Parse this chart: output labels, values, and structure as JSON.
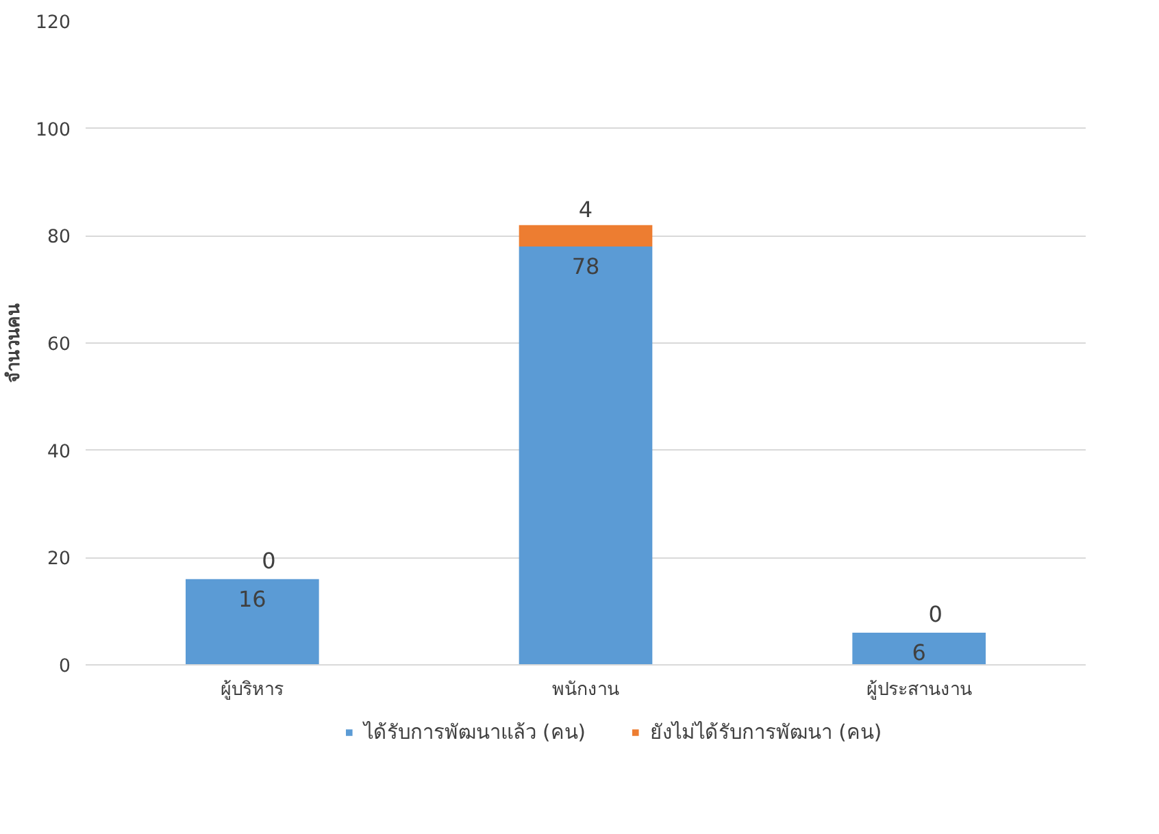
{
  "chart_data": {
    "type": "bar",
    "stacked": true,
    "ylabel": "จำนวนคน",
    "categories": [
      "ผู้บริหาร",
      "พนักงาน",
      "ผู้ประสานงาน"
    ],
    "series": [
      {
        "name": "ได้รับการพัฒนาแล้ว (คน)",
        "color": "#5b9bd5",
        "values": [
          16,
          78,
          6
        ]
      },
      {
        "name": "ยังไม่ได้รับการพัฒนา (คน)",
        "color": "#ed7d31",
        "values": [
          0,
          4,
          0
        ]
      }
    ],
    "ylim": [
      0,
      120
    ],
    "yticks": [
      0,
      20,
      40,
      60,
      80,
      100,
      120
    ],
    "grid": "y",
    "legend": "bottom",
    "data_labels": true
  }
}
